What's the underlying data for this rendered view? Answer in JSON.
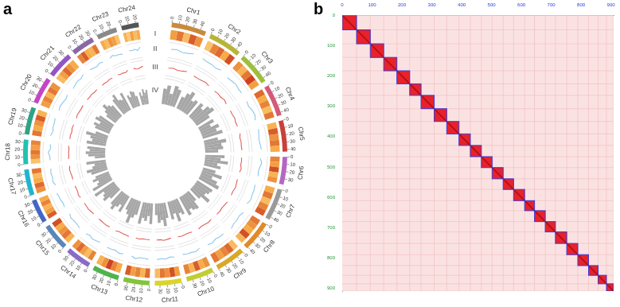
{
  "chart_data": [
    {
      "type": "circos",
      "panel": "a",
      "chromosomes": [
        {
          "name": "Chr1",
          "length": 48,
          "color": "#c98a3c",
          "ticks": [
            0,
            10,
            20,
            30,
            40
          ]
        },
        {
          "name": "Chr2",
          "length": 46,
          "color": "#b8b43a",
          "ticks": [
            0,
            10,
            20,
            30,
            40
          ]
        },
        {
          "name": "Chr3",
          "length": 45,
          "color": "#9cbf3e",
          "ticks": [
            0,
            10,
            20,
            30,
            40
          ]
        },
        {
          "name": "Chr4",
          "length": 44,
          "color": "#d45a78",
          "ticks": [
            0,
            10,
            20,
            30,
            40
          ]
        },
        {
          "name": "Chr5",
          "length": 43,
          "color": "#c8403a",
          "ticks": [
            0,
            10,
            20,
            30,
            40
          ]
        },
        {
          "name": "Chr6",
          "length": 38,
          "color": "#b566c4",
          "ticks": [
            0,
            10,
            20,
            30
          ]
        },
        {
          "name": "Chr7",
          "length": 44,
          "color": "#9a9a9a",
          "ticks": [
            0,
            10,
            20,
            30,
            40
          ]
        },
        {
          "name": "Chr8",
          "length": 42,
          "color": "#e08a2a",
          "ticks": [
            0,
            10,
            20,
            30,
            40
          ]
        },
        {
          "name": "Chr9",
          "length": 41,
          "color": "#d8a82a",
          "ticks": [
            0,
            10,
            20,
            30,
            40
          ]
        },
        {
          "name": "Chr10",
          "length": 38,
          "color": "#c2cc34",
          "ticks": [
            0,
            10,
            20,
            30
          ]
        },
        {
          "name": "Chr11",
          "length": 37,
          "color": "#d9d52a",
          "ticks": [
            0,
            10,
            20,
            30
          ]
        },
        {
          "name": "Chr12",
          "length": 36,
          "color": "#82c43a",
          "ticks": [
            0,
            10,
            20,
            30
          ]
        },
        {
          "name": "Chr13",
          "length": 37,
          "color": "#4fb34f",
          "ticks": [
            0,
            10,
            20,
            30
          ]
        },
        {
          "name": "Chr14",
          "length": 35,
          "color": "#8a6cc8",
          "ticks": [
            0,
            10,
            20,
            30
          ]
        },
        {
          "name": "Chr15",
          "length": 37,
          "color": "#5a86b8",
          "ticks": [
            0,
            10,
            20,
            30
          ]
        },
        {
          "name": "Chr16",
          "length": 33,
          "color": "#4566c4",
          "ticks": [
            0,
            10,
            20,
            30
          ]
        },
        {
          "name": "Chr17",
          "length": 36,
          "color": "#22b4cc",
          "ticks": [
            0,
            10,
            20,
            30
          ]
        },
        {
          "name": "Chr18",
          "length": 34,
          "color": "#20c2b0",
          "ticks": [
            0,
            10,
            20,
            30
          ]
        },
        {
          "name": "Chr19",
          "length": 38,
          "color": "#2fa384",
          "ticks": [
            0,
            10,
            20,
            30
          ]
        },
        {
          "name": "Chr20",
          "length": 37,
          "color": "#c446c4",
          "ticks": [
            0,
            10,
            20,
            30
          ]
        },
        {
          "name": "Chr21",
          "length": 36,
          "color": "#9354c4",
          "ticks": [
            0,
            10,
            20,
            30
          ]
        },
        {
          "name": "Chr22",
          "length": 32,
          "color": "#8a68a8",
          "ticks": [
            0,
            10,
            20,
            30
          ]
        },
        {
          "name": "Chr23",
          "length": 28,
          "color": "#8a8a8a",
          "ticks": [
            0,
            10,
            20
          ]
        },
        {
          "name": "Chr24",
          "length": 24,
          "color": "#555555",
          "ticks": [
            0,
            10,
            20
          ]
        }
      ],
      "tracks": [
        {
          "name": "I",
          "type": "heatmap",
          "range": [
            0,
            100
          ],
          "values": [
            [
              55,
              70,
              40,
              80,
              60
            ],
            [
              35,
              65,
              75,
              50,
              85
            ],
            [
              60,
              45,
              70,
              90,
              55
            ],
            [
              75,
              50,
              65,
              40,
              70
            ],
            [
              45,
              80,
              60,
              70,
              50
            ],
            [
              65,
              55,
              85,
              45,
              60
            ],
            [
              50,
              70,
              40,
              65,
              80
            ],
            [
              70,
              60,
              50,
              85,
              45
            ],
            [
              40,
              75,
              65,
              55,
              70
            ],
            [
              60,
              50,
              80,
              45,
              65
            ],
            [
              55,
              85,
              60,
              70,
              40
            ],
            [
              75,
              45,
              65,
              55,
              80
            ],
            [
              50,
              65,
              90,
              60,
              45
            ],
            [
              65,
              40,
              55,
              75,
              60
            ],
            [
              45,
              70,
              60,
              50,
              85
            ],
            [
              80,
              55,
              45,
              65,
              50
            ],
            [
              60,
              75,
              50,
              40,
              70
            ],
            [
              35,
              60,
              70,
              55,
              65
            ],
            [
              70,
              50,
              60,
              80,
              45
            ],
            [
              55,
              65,
              45,
              70,
              60
            ],
            [
              40,
              55,
              75,
              60,
              50
            ],
            [
              65,
              80,
              50,
              45,
              70
            ],
            [
              50,
              40,
              60,
              55,
              35
            ],
            [
              45,
              30,
              55,
              40,
              50
            ]
          ]
        },
        {
          "name": "II",
          "type": "line",
          "color": "#8cc8ea",
          "ylim": [
            0.3,
            0.5
          ],
          "values": [
            [
              0.41,
              0.42,
              0.4,
              0.41,
              0.43
            ],
            [
              0.42,
              0.41,
              0.41,
              0.4,
              0.42
            ],
            [
              0.4,
              0.41,
              0.42,
              0.41,
              0.41
            ],
            [
              0.41,
              0.4,
              0.42,
              0.43,
              0.41
            ],
            [
              0.42,
              0.41,
              0.4,
              0.41,
              0.42
            ],
            [
              0.41,
              0.43,
              0.41,
              0.4,
              0.41
            ],
            [
              0.4,
              0.41,
              0.41,
              0.42,
              0.4
            ],
            [
              0.42,
              0.4,
              0.41,
              0.41,
              0.43
            ],
            [
              0.41,
              0.41,
              0.4,
              0.42,
              0.41
            ],
            [
              0.4,
              0.42,
              0.41,
              0.41,
              0.4
            ],
            [
              0.41,
              0.4,
              0.42,
              0.41,
              0.42
            ],
            [
              0.42,
              0.41,
              0.41,
              0.43,
              0.41
            ],
            [
              0.41,
              0.42,
              0.4,
              0.41,
              0.41
            ],
            [
              0.4,
              0.41,
              0.42,
              0.4,
              0.42
            ],
            [
              0.42,
              0.41,
              0.41,
              0.42,
              0.4
            ],
            [
              0.41,
              0.4,
              0.41,
              0.41,
              0.42
            ],
            [
              0.4,
              0.42,
              0.41,
              0.42,
              0.41
            ],
            [
              0.41,
              0.41,
              0.43,
              0.4,
              0.41
            ],
            [
              0.42,
              0.4,
              0.41,
              0.41,
              0.42
            ],
            [
              0.41,
              0.42,
              0.41,
              0.4,
              0.41
            ],
            [
              0.4,
              0.41,
              0.42,
              0.41,
              0.43
            ],
            [
              0.42,
              0.41,
              0.4,
              0.42,
              0.41
            ],
            [
              0.41,
              0.43,
              0.41,
              0.41,
              0.4
            ],
            [
              0.42,
              0.41,
              0.42,
              0.4,
              0.44
            ]
          ]
        },
        {
          "name": "III",
          "type": "line",
          "color": "#e0605a",
          "ylim": [
            0,
            1
          ],
          "values": [
            [
              0.5,
              0.55,
              0.48,
              0.52,
              0.6
            ],
            [
              0.52,
              0.49,
              0.51,
              0.55,
              0.5
            ],
            [
              0.48,
              0.53,
              0.5,
              0.58,
              0.51
            ],
            [
              0.51,
              0.5,
              0.54,
              0.49,
              0.52
            ],
            [
              0.55,
              0.48,
              0.52,
              0.5,
              0.53
            ],
            [
              0.5,
              0.52,
              0.49,
              0.56,
              0.5
            ],
            [
              0.49,
              0.51,
              0.55,
              0.5,
              0.52
            ],
            [
              0.53,
              0.5,
              0.48,
              0.52,
              0.51
            ],
            [
              0.5,
              0.54,
              0.51,
              0.49,
              0.55
            ],
            [
              0.52,
              0.49,
              0.5,
              0.53,
              0.5
            ],
            [
              0.48,
              0.52,
              0.56,
              0.5,
              0.51
            ],
            [
              0.51,
              0.5,
              0.49,
              0.54,
              0.52
            ],
            [
              0.54,
              0.51,
              0.5,
              0.48,
              0.53
            ],
            [
              0.5,
              0.53,
              0.52,
              0.5,
              0.49
            ],
            [
              0.49,
              0.5,
              0.54,
              0.51,
              0.52
            ],
            [
              0.52,
              0.56,
              0.5,
              0.49,
              0.51
            ],
            [
              0.5,
              0.49,
              0.52,
              0.55,
              0.5
            ],
            [
              0.53,
              0.5,
              0.51,
              0.49,
              0.54
            ],
            [
              0.51,
              0.52,
              0.48,
              0.53,
              0.5
            ],
            [
              0.49,
              0.54,
              0.51,
              0.5,
              0.52
            ],
            [
              0.52,
              0.5,
              0.53,
              0.49,
              0.51
            ],
            [
              0.5,
              0.51,
              0.49,
              0.55,
              0.52
            ],
            [
              0.55,
              0.5,
              0.52,
              0.48,
              0.58
            ],
            [
              0.6,
              0.52,
              0.5,
              0.56,
              0.62
            ]
          ]
        },
        {
          "name": "IV",
          "type": "bar",
          "color": "#a6a6a6",
          "ylim": [
            0,
            100
          ],
          "values": [
            [
              60,
              75,
              45,
              80,
              70
            ],
            [
              50,
              70,
              85,
              55,
              65
            ],
            [
              70,
              55,
              80,
              90,
              60
            ],
            [
              65,
              45,
              75,
              60,
              80
            ],
            [
              55,
              85,
              65,
              70,
              50
            ],
            [
              75,
              60,
              90,
              50,
              65
            ],
            [
              50,
              80,
              45,
              70,
              85
            ],
            [
              70,
              65,
              55,
              85,
              50
            ],
            [
              45,
              75,
              70,
              60,
              80
            ],
            [
              65,
              55,
              85,
              50,
              70
            ],
            [
              60,
              90,
              65,
              75,
              45
            ],
            [
              80,
              50,
              70,
              60,
              85
            ],
            [
              55,
              70,
              95,
              65,
              50
            ],
            [
              70,
              45,
              60,
              80,
              65
            ],
            [
              50,
              75,
              65,
              55,
              90
            ],
            [
              85,
              60,
              50,
              70,
              55
            ],
            [
              65,
              80,
              55,
              45,
              75
            ],
            [
              40,
              65,
              75,
              60,
              70
            ],
            [
              75,
              55,
              65,
              85,
              50
            ],
            [
              60,
              70,
              50,
              75,
              65
            ],
            [
              45,
              60,
              80,
              65,
              55
            ],
            [
              70,
              85,
              55,
              50,
              75
            ],
            [
              55,
              45,
              65,
              60,
              40
            ],
            [
              50,
              35,
              60,
              45,
              55
            ]
          ]
        }
      ]
    },
    {
      "type": "heatmap",
      "panel": "b",
      "xlim": [
        0,
        909
      ],
      "ylim": [
        0,
        909
      ],
      "xticks": [
        0,
        100,
        200,
        300,
        400,
        500,
        600,
        700,
        800,
        900
      ],
      "yticks": [
        0,
        100,
        200,
        300,
        400,
        500,
        600,
        700,
        800,
        900
      ],
      "blocks": [
        48,
        46,
        45,
        44,
        43,
        38,
        44,
        42,
        41,
        38,
        37,
        36,
        37,
        35,
        37,
        33,
        36,
        34,
        38,
        37,
        36,
        32,
        28,
        24
      ],
      "color": "#e8212b"
    }
  ]
}
